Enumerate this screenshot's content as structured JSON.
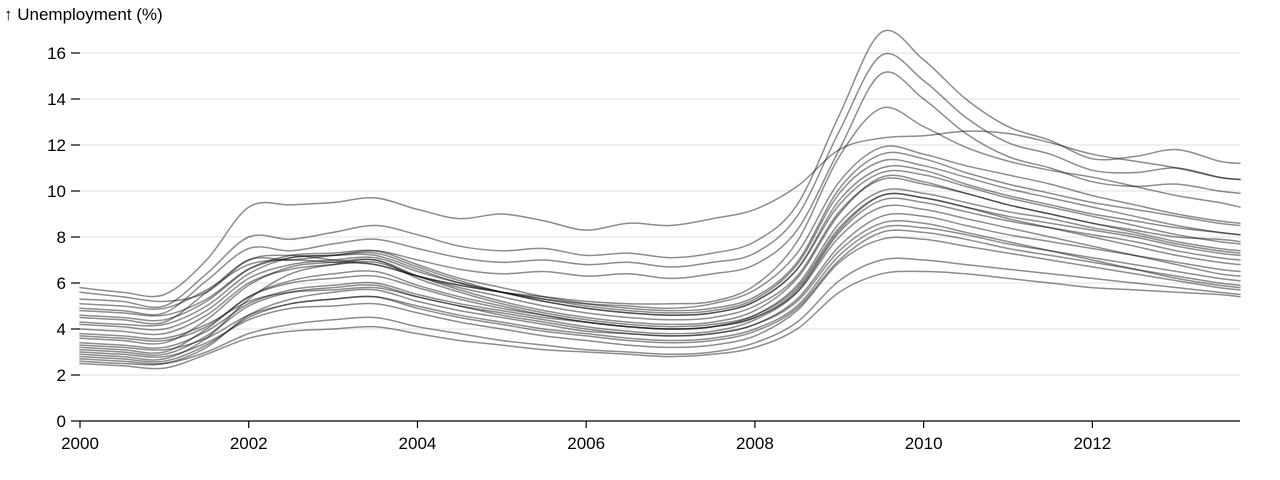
{
  "chart_data": {
    "type": "line",
    "ylabel": "↑ Unemployment (%)",
    "xlabel": "",
    "title": "",
    "grid": "horizontal",
    "legend": "none",
    "xlim": [
      2000.0,
      2013.75
    ],
    "ylim": [
      0,
      17
    ],
    "x_ticks": [
      "2000",
      "2002",
      "2004",
      "2006",
      "2008",
      "2010",
      "2012"
    ],
    "y_ticks": [
      "0",
      "2",
      "4",
      "6",
      "8",
      "10",
      "12",
      "14",
      "16"
    ],
    "x": [
      2000.0,
      2000.5,
      2001.0,
      2001.5,
      2002.0,
      2002.5,
      2003.0,
      2003.5,
      2004.0,
      2004.5,
      2005.0,
      2005.5,
      2006.0,
      2006.5,
      2007.0,
      2007.5,
      2008.0,
      2008.5,
      2009.0,
      2009.5,
      2010.0,
      2010.5,
      2011.0,
      2011.5,
      2012.0,
      2012.5,
      2013.0,
      2013.5,
      2013.75
    ],
    "series": [
      {
        "values": [
          2.9,
          2.8,
          2.7,
          3.6,
          5.3,
          6.4,
          6.8,
          7.0,
          6.3,
          5.7,
          5.2,
          4.8,
          4.5,
          4.3,
          4.2,
          4.3,
          4.8,
          6.2,
          9.0,
          10.6,
          10.4,
          9.9,
          9.4,
          9.0,
          8.6,
          8.3,
          8.0,
          7.9,
          7.8
        ]
      },
      {
        "values": [
          3.6,
          3.5,
          3.4,
          4.4,
          5.9,
          6.7,
          6.9,
          7.0,
          6.2,
          5.6,
          5.1,
          4.7,
          4.4,
          4.2,
          4.1,
          4.2,
          4.6,
          5.8,
          8.4,
          9.8,
          9.7,
          9.3,
          8.8,
          8.4,
          8.0,
          7.6,
          7.2,
          6.9,
          6.8
        ]
      },
      {
        "values": [
          3.2,
          3.1,
          3.0,
          4.0,
          5.4,
          6.1,
          6.4,
          6.5,
          5.9,
          5.4,
          5.0,
          4.6,
          4.3,
          4.1,
          4.0,
          4.1,
          4.5,
          5.6,
          8.0,
          9.3,
          9.2,
          8.8,
          8.4,
          8.0,
          7.6,
          7.2,
          6.8,
          6.4,
          6.3
        ]
      },
      {
        "values": [
          2.6,
          2.5,
          2.5,
          3.2,
          4.6,
          5.3,
          5.6,
          5.7,
          5.2,
          4.8,
          4.5,
          4.2,
          3.9,
          3.8,
          3.7,
          3.8,
          4.2,
          5.2,
          7.4,
          8.6,
          8.6,
          8.2,
          7.8,
          7.4,
          7.0,
          6.6,
          6.2,
          5.9,
          5.8
        ]
      },
      {
        "values": [
          4.3,
          4.2,
          4.2,
          5.0,
          6.4,
          7.1,
          7.2,
          7.3,
          6.7,
          6.1,
          5.6,
          5.2,
          4.9,
          4.7,
          4.6,
          4.7,
          5.2,
          6.6,
          9.6,
          11.0,
          10.9,
          10.3,
          9.8,
          9.4,
          9.0,
          8.7,
          8.4,
          8.2,
          8.1
        ]
      },
      {
        "values": [
          5.6,
          5.4,
          5.2,
          5.6,
          7.0,
          7.2,
          7.0,
          6.8,
          6.3,
          5.9,
          5.6,
          5.4,
          5.2,
          5.1,
          5.1,
          5.2,
          5.9,
          7.8,
          11.5,
          13.6,
          12.8,
          11.9,
          11.3,
          10.9,
          10.6,
          10.2,
          9.8,
          9.5,
          9.3
        ]
      },
      {
        "values": [
          5.8,
          5.6,
          5.5,
          7.0,
          9.3,
          9.4,
          9.5,
          9.7,
          9.2,
          8.8,
          9.0,
          8.7,
          8.3,
          8.6,
          8.5,
          8.8,
          9.2,
          10.2,
          11.8,
          12.3,
          12.4,
          12.6,
          12.5,
          12.1,
          11.6,
          11.3,
          11.0,
          10.6,
          10.5
        ]
      },
      {
        "values": [
          5.3,
          5.2,
          5.0,
          6.4,
          8.0,
          7.9,
          8.2,
          8.5,
          8.1,
          7.6,
          7.4,
          7.5,
          7.2,
          7.3,
          7.1,
          7.3,
          7.8,
          9.4,
          13.3,
          16.9,
          15.7,
          14.0,
          12.8,
          12.2,
          11.4,
          11.5,
          11.8,
          11.3,
          11.2
        ]
      },
      {
        "values": [
          4.9,
          4.8,
          4.7,
          6.1,
          7.5,
          7.4,
          7.7,
          7.9,
          7.5,
          7.1,
          6.9,
          7.0,
          6.8,
          6.9,
          6.7,
          6.9,
          7.3,
          8.9,
          12.6,
          15.9,
          14.8,
          13.2,
          12.1,
          11.6,
          10.9,
          10.8,
          11.0,
          10.6,
          10.5
        ]
      },
      {
        "values": [
          4.5,
          4.4,
          4.3,
          5.6,
          7.0,
          7.0,
          7.2,
          7.4,
          7.0,
          6.6,
          6.4,
          6.5,
          6.3,
          6.4,
          6.2,
          6.4,
          6.8,
          8.3,
          11.8,
          15.1,
          14.0,
          12.5,
          11.5,
          11.0,
          10.4,
          10.2,
          10.3,
          10.0,
          9.9
        ]
      },
      {
        "values": [
          3.8,
          3.7,
          3.6,
          4.2,
          5.2,
          5.6,
          5.7,
          5.8,
          5.4,
          5.0,
          4.7,
          4.4,
          4.1,
          3.9,
          3.8,
          3.9,
          4.4,
          5.6,
          8.2,
          9.6,
          9.5,
          9.1,
          8.7,
          8.4,
          8.1,
          7.8,
          7.4,
          7.1,
          7.0
        ]
      },
      {
        "values": [
          3.0,
          2.9,
          2.8,
          3.4,
          4.4,
          4.9,
          5.0,
          5.1,
          4.7,
          4.3,
          4.0,
          3.7,
          3.5,
          3.3,
          3.2,
          3.3,
          3.7,
          4.8,
          6.9,
          7.9,
          7.9,
          7.6,
          7.3,
          7.0,
          6.7,
          6.4,
          6.1,
          5.8,
          5.7
        ]
      },
      {
        "values": [
          2.7,
          2.6,
          2.5,
          3.0,
          3.8,
          4.2,
          4.4,
          4.5,
          4.1,
          3.8,
          3.5,
          3.3,
          3.1,
          3.0,
          2.9,
          3.0,
          3.4,
          4.3,
          6.1,
          7.0,
          7.0,
          6.8,
          6.6,
          6.4,
          6.2,
          6.0,
          5.8,
          5.6,
          5.5
        ]
      },
      {
        "values": [
          4.0,
          3.9,
          3.8,
          4.6,
          6.0,
          6.6,
          6.8,
          6.9,
          6.3,
          5.8,
          5.4,
          5.0,
          4.7,
          4.5,
          4.4,
          4.5,
          5.0,
          6.3,
          9.1,
          10.5,
          10.3,
          9.9,
          9.4,
          9.0,
          8.6,
          8.2,
          7.8,
          7.5,
          7.4
        ]
      },
      {
        "values": [
          3.4,
          3.3,
          3.2,
          3.9,
          5.1,
          5.7,
          5.9,
          6.0,
          5.5,
          5.1,
          4.8,
          4.5,
          4.3,
          4.1,
          4.0,
          4.1,
          4.5,
          5.7,
          8.3,
          9.8,
          9.7,
          9.3,
          8.9,
          8.6,
          8.3,
          8.0,
          7.6,
          7.3,
          7.2
        ]
      },
      {
        "values": [
          4.6,
          4.5,
          4.4,
          5.2,
          6.6,
          7.2,
          7.3,
          7.4,
          6.8,
          6.2,
          5.8,
          5.4,
          5.1,
          4.9,
          4.8,
          4.9,
          5.4,
          6.9,
          10.1,
          11.6,
          11.4,
          10.8,
          10.3,
          9.9,
          9.5,
          9.2,
          8.9,
          8.6,
          8.5
        ]
      },
      {
        "values": [
          3.1,
          3.0,
          2.9,
          3.7,
          5.0,
          5.6,
          5.8,
          5.9,
          5.4,
          5.0,
          4.6,
          4.3,
          4.0,
          3.8,
          3.7,
          3.8,
          4.2,
          5.3,
          7.6,
          8.9,
          8.9,
          8.5,
          8.1,
          7.8,
          7.5,
          7.2,
          6.9,
          6.6,
          6.5
        ]
      },
      {
        "values": [
          2.8,
          2.7,
          2.6,
          3.3,
          4.5,
          5.1,
          5.3,
          5.4,
          4.9,
          4.5,
          4.2,
          3.9,
          3.7,
          3.5,
          3.4,
          3.5,
          3.9,
          4.9,
          7.0,
          8.2,
          8.2,
          7.9,
          7.5,
          7.2,
          6.9,
          6.6,
          6.3,
          6.0,
          5.9
        ]
      },
      {
        "values": [
          5.1,
          5.0,
          4.9,
          5.7,
          6.8,
          7.0,
          6.9,
          6.8,
          6.3,
          5.9,
          5.6,
          5.3,
          5.1,
          5.0,
          4.9,
          5.1,
          5.7,
          7.3,
          10.4,
          11.9,
          11.6,
          11.1,
          10.7,
          10.3,
          9.8,
          9.4,
          9.0,
          8.7,
          8.6
        ]
      },
      {
        "values": [
          3.7,
          3.6,
          3.5,
          4.1,
          5.4,
          6.0,
          6.2,
          6.3,
          5.8,
          5.3,
          4.9,
          4.6,
          4.3,
          4.1,
          4.0,
          4.1,
          4.6,
          5.9,
          8.6,
          10.0,
          9.9,
          9.5,
          9.1,
          8.8,
          8.4,
          8.1,
          7.7,
          7.4,
          7.3
        ]
      },
      {
        "values": [
          4.2,
          4.1,
          4.0,
          4.8,
          6.2,
          6.8,
          7.0,
          7.1,
          6.5,
          6.0,
          5.6,
          5.2,
          4.9,
          4.7,
          4.6,
          4.7,
          5.2,
          6.6,
          9.4,
          10.8,
          10.7,
          10.2,
          9.7,
          9.3,
          8.9,
          8.5,
          8.1,
          7.8,
          7.7
        ]
      },
      {
        "values": [
          3.3,
          3.2,
          3.1,
          3.6,
          4.6,
          5.1,
          5.3,
          5.4,
          5.0,
          4.6,
          4.3,
          4.0,
          3.8,
          3.6,
          3.5,
          3.6,
          4.0,
          5.0,
          7.2,
          8.4,
          8.4,
          8.1,
          7.7,
          7.4,
          7.1,
          6.8,
          6.5,
          6.2,
          6.1
        ]
      },
      {
        "values": [
          2.5,
          2.4,
          2.3,
          2.9,
          3.6,
          3.9,
          4.0,
          4.1,
          3.8,
          3.5,
          3.3,
          3.1,
          3.0,
          2.9,
          2.8,
          2.9,
          3.2,
          4.0,
          5.6,
          6.4,
          6.5,
          6.4,
          6.2,
          6.0,
          5.8,
          5.7,
          5.6,
          5.5,
          5.4
        ]
      },
      {
        "values": [
          4.8,
          4.7,
          4.6,
          5.3,
          6.6,
          7.1,
          7.2,
          7.2,
          6.6,
          6.0,
          5.6,
          5.3,
          5.0,
          4.8,
          4.7,
          4.8,
          5.3,
          6.8,
          9.9,
          11.3,
          11.1,
          10.6,
          10.1,
          9.7,
          9.3,
          8.9,
          8.5,
          8.2,
          8.1
        ]
      }
    ]
  }
}
